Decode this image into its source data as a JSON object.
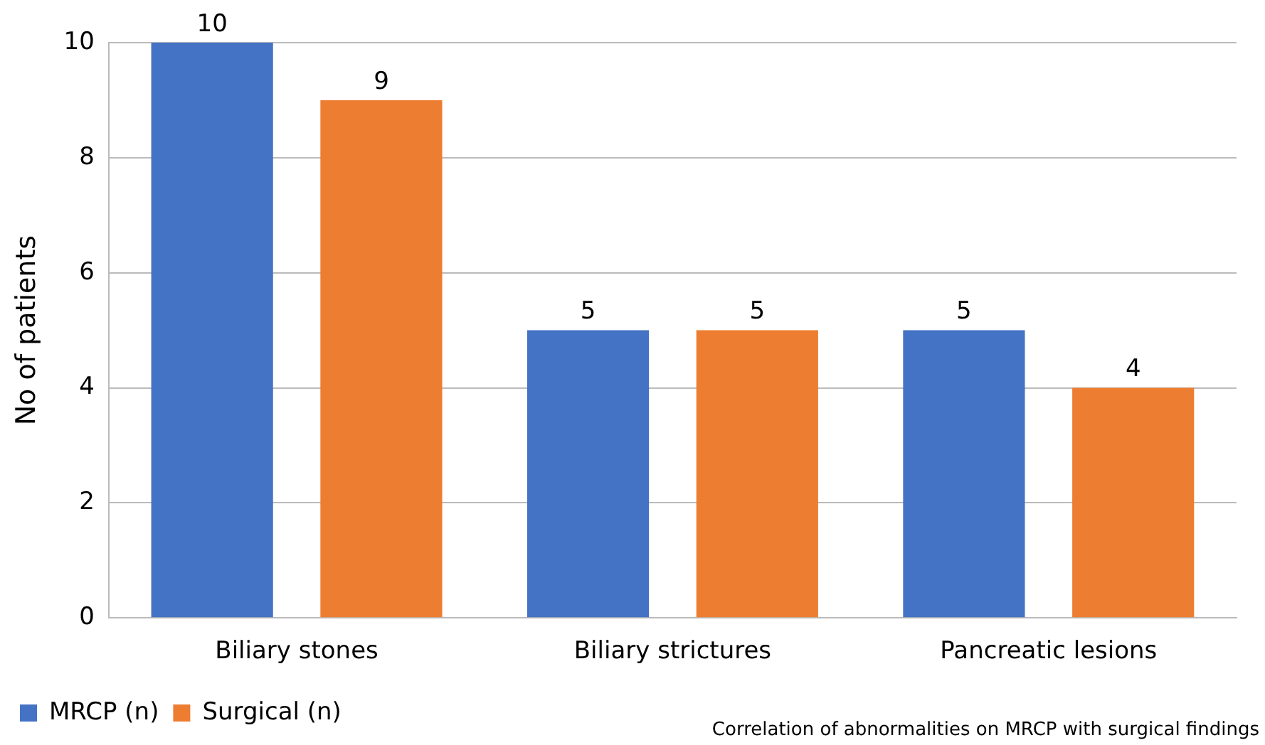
{
  "chart_data": {
    "type": "bar",
    "ylabel": "No of patients",
    "categories": [
      "Biliary stones",
      "Biliary strictures",
      "Pancreatic lesions"
    ],
    "series": [
      {
        "name": "MRCP (n)",
        "color": "#4472c4",
        "values": [
          10,
          5,
          5
        ]
      },
      {
        "name": "Surgical (n)",
        "color": "#ed7d31",
        "values": [
          9,
          5,
          4
        ]
      }
    ],
    "ylim": [
      0,
      10
    ],
    "yticks": [
      0,
      2,
      4,
      6,
      8,
      10
    ],
    "grid": "y",
    "legend": "bottom left",
    "data_labels": true,
    "annotations": [
      "Correlation of abnormalities on MRCP with surgical findings"
    ]
  }
}
